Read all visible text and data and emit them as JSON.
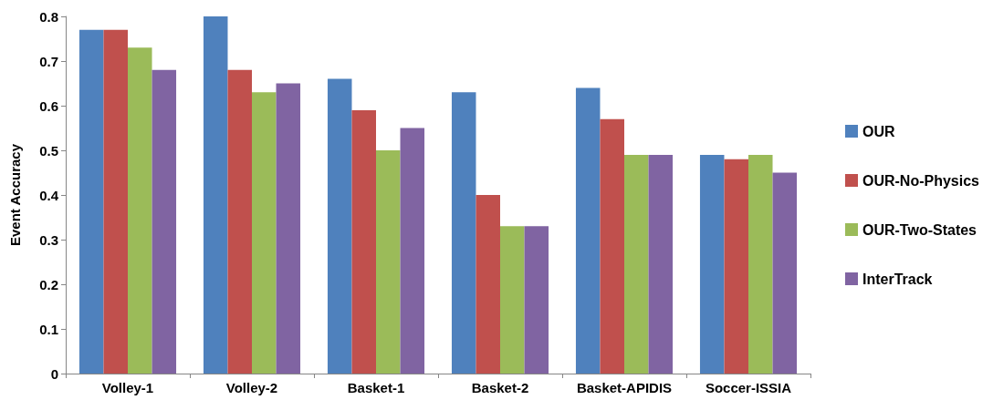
{
  "chart_data": {
    "type": "bar",
    "ylabel": "Event Accuracy",
    "categories": [
      "Volley-1",
      "Volley-2",
      "Basket-1",
      "Basket-2",
      "Basket-APIDIS",
      "Soccer-ISSIA"
    ],
    "series": [
      {
        "name": "OUR",
        "color": "#4f81bd",
        "values": [
          0.77,
          0.8,
          0.66,
          0.63,
          0.64,
          0.49
        ]
      },
      {
        "name": "OUR-No-Physics",
        "color": "#c0504d",
        "values": [
          0.77,
          0.68,
          0.59,
          0.4,
          0.57,
          0.48
        ]
      },
      {
        "name": "OUR-Two-States",
        "color": "#9bbb59",
        "values": [
          0.73,
          0.63,
          0.5,
          0.33,
          0.49,
          0.49
        ]
      },
      {
        "name": "InterTrack",
        "color": "#8064a2",
        "values": [
          0.68,
          0.65,
          0.55,
          0.33,
          0.49,
          0.45
        ]
      }
    ],
    "ylim": [
      0,
      0.8
    ],
    "yticks": [
      0,
      0.1,
      0.2,
      0.3,
      0.4,
      0.5,
      0.6,
      0.7,
      0.8
    ],
    "grid": false,
    "legend": "right"
  }
}
